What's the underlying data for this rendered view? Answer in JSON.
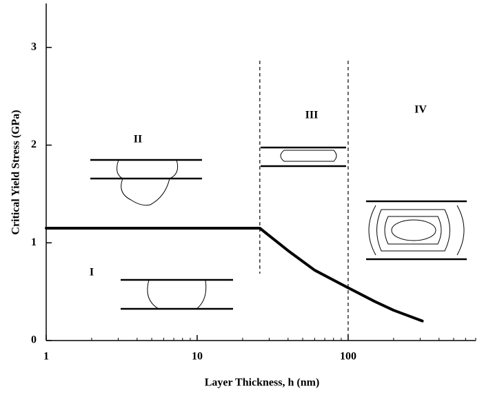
{
  "chart_data": {
    "type": "line",
    "x_label": "Layer Thickness, h (nm)",
    "y_label": "Critical Yield Stress (GPa)",
    "x": [
      1,
      26,
      40,
      60,
      100,
      150,
      200,
      310
    ],
    "series": [
      {
        "color": "#000000",
        "values": [
          1.15,
          1.15,
          0.92,
          0.72,
          0.54,
          0.4,
          0.31,
          0.2
        ]
      }
    ],
    "xlim": [
      1,
      700
    ],
    "xscale": "log",
    "xticks": [
      1,
      10,
      100
    ],
    "xminor_ticks": [
      2,
      3,
      4,
      5,
      6,
      7,
      8,
      9,
      20,
      30,
      40,
      50,
      60,
      70,
      80,
      90,
      200,
      300,
      400,
      500,
      600,
      700
    ],
    "ylim": [
      0,
      3.45
    ],
    "yticks": [
      0,
      1,
      2,
      3
    ],
    "vlines": [
      26,
      100
    ],
    "annotations": [
      "I",
      "II",
      "III",
      "IV"
    ]
  }
}
